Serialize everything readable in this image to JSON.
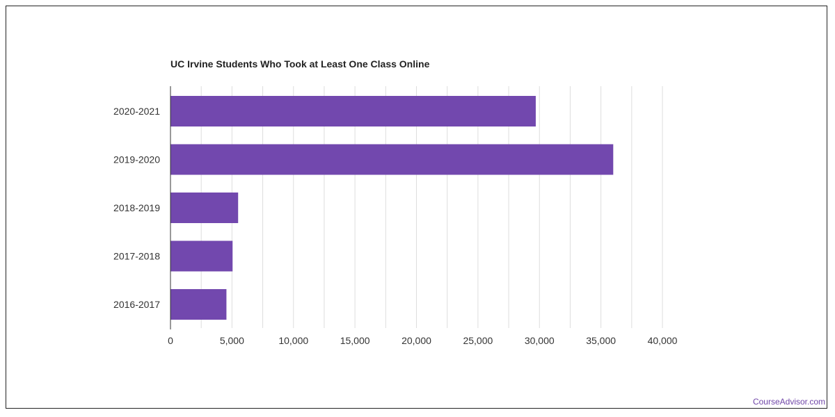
{
  "credit": "CourseAdvisor.com",
  "colors": {
    "bar": "#7248ae",
    "grid": "#dddddd",
    "axis": "#333333",
    "credit": "#6f45a8"
  },
  "chart_data": {
    "type": "bar",
    "orientation": "horizontal",
    "title": "UC Irvine Students Who Took at Least One Class Online",
    "xlabel": "",
    "ylabel": "",
    "categories": [
      "2020-2021",
      "2019-2020",
      "2018-2019",
      "2017-2018",
      "2016-2017"
    ],
    "values": [
      29700,
      36000,
      5500,
      5050,
      4550
    ],
    "xlim": [
      0,
      40000
    ],
    "ticks": [
      0,
      5000,
      10000,
      15000,
      20000,
      25000,
      30000,
      35000,
      40000
    ],
    "tick_labels": [
      "0",
      "5,000",
      "10,000",
      "15,000",
      "20,000",
      "25,000",
      "30,000",
      "35,000",
      "40,000"
    ],
    "grid": true,
    "legend": "none"
  }
}
